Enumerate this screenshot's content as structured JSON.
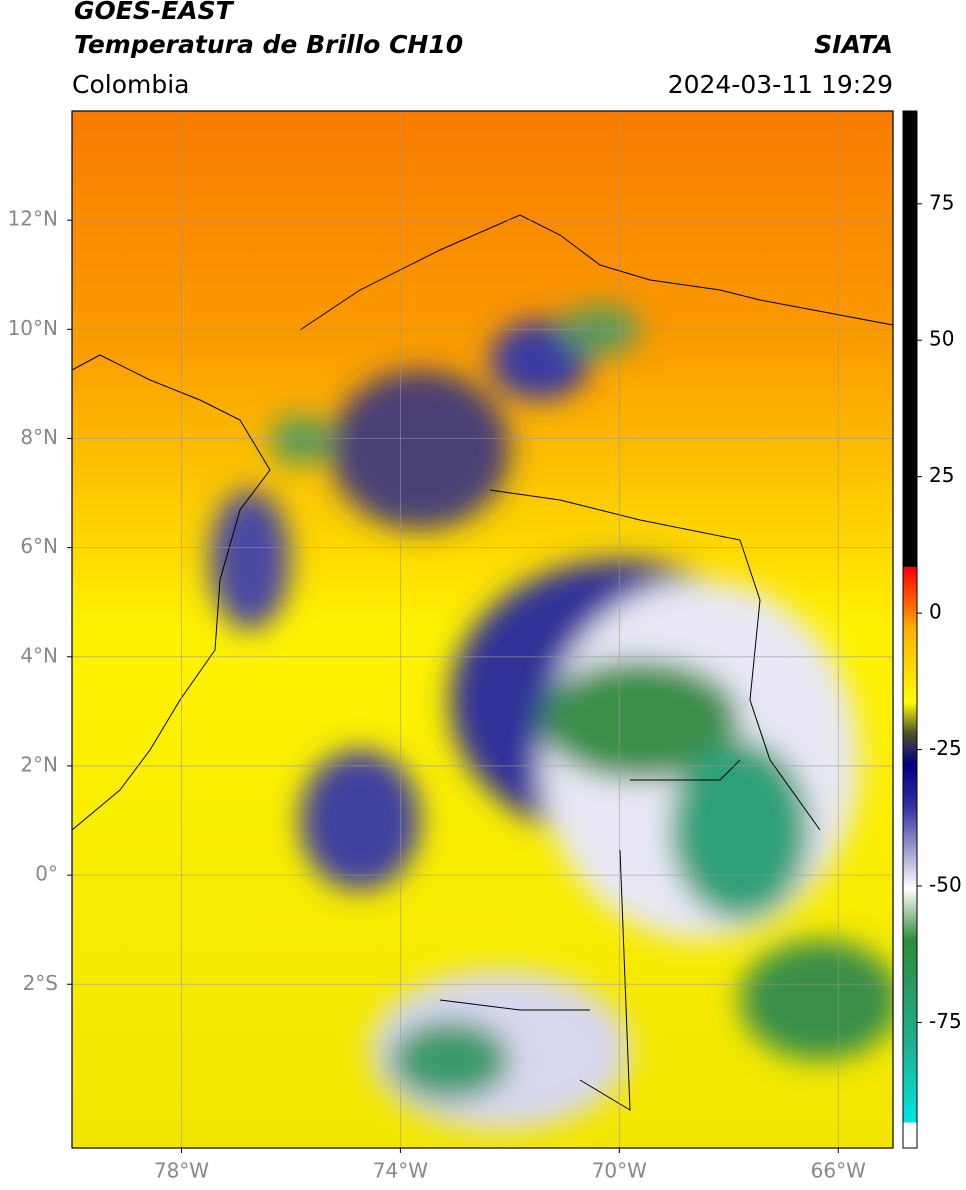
{
  "header": {
    "satellite": "GOES-EAST",
    "product": "Temperatura de Brillo CH10",
    "source": "SIATA",
    "region": "Colombia",
    "datetime": "2024-03-11 19:29"
  },
  "map": {
    "xlim": [
      -80,
      -65
    ],
    "ylim": [
      -5,
      14
    ],
    "xticks": [
      {
        "value": -78,
        "label": "78°W"
      },
      {
        "value": -74,
        "label": "74°W"
      },
      {
        "value": -70,
        "label": "70°W"
      },
      {
        "value": -66,
        "label": "66°W"
      }
    ],
    "yticks": [
      {
        "value": 12,
        "label": "12°N"
      },
      {
        "value": 10,
        "label": "10°N"
      },
      {
        "value": 8,
        "label": "8°N"
      },
      {
        "value": 6,
        "label": "6°N"
      },
      {
        "value": 4,
        "label": "4°N"
      },
      {
        "value": 2,
        "label": "2°N"
      },
      {
        "value": 0,
        "label": "0°"
      },
      {
        "value": -2,
        "label": "2°S"
      }
    ]
  },
  "colorbar": {
    "lim": [
      -98,
      92
    ],
    "ticks": [
      75,
      50,
      25,
      0,
      -25,
      -50,
      -75
    ]
  }
}
